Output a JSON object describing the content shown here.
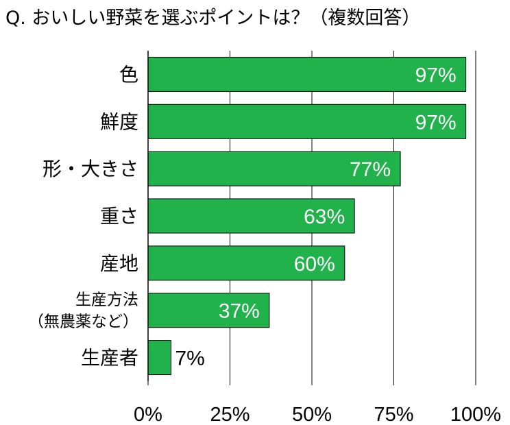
{
  "title": "Q. おいしい野菜を選ぶポイントは？（複数回答）",
  "chart_data": {
    "type": "bar",
    "orientation": "horizontal",
    "title": "Q. おいしい野菜を選ぶポイントは？（複数回答）",
    "categories": [
      [
        "色"
      ],
      [
        "鮮度"
      ],
      [
        "形・大きさ"
      ],
      [
        "重さ"
      ],
      [
        "産地"
      ],
      [
        "生産方法",
        "（無農薬など）"
      ],
      [
        "生産者"
      ]
    ],
    "values": [
      97,
      97,
      77,
      63,
      60,
      37,
      7
    ],
    "value_labels": [
      "97%",
      "97%",
      "77%",
      "63%",
      "60%",
      "37%",
      "7%"
    ],
    "xlim": [
      0,
      100
    ],
    "xticks": [
      0,
      25,
      50,
      75,
      100
    ],
    "xtick_labels": [
      "0%",
      "25%",
      "50%",
      "75%",
      "100%"
    ],
    "grid": true,
    "colors": {
      "bar": "#21b24b",
      "bar_edge": "#000000",
      "grid": "#000000",
      "label_inside": "#ffffff",
      "label_outside": "#000000"
    }
  }
}
